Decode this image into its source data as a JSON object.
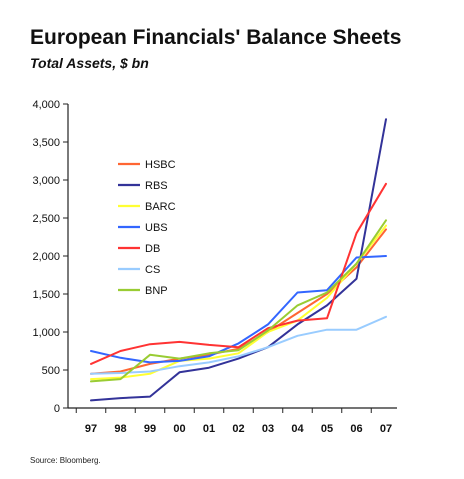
{
  "chart_data": {
    "type": "line",
    "title": "European Financials' Balance Sheets",
    "subtitle": "Total Assets, $ bn",
    "source": "Source: Bloomberg.",
    "xlabel": "",
    "ylabel": "",
    "categories": [
      "97",
      "98",
      "99",
      "00",
      "01",
      "02",
      "03",
      "04",
      "05",
      "06",
      "07"
    ],
    "ylim": [
      0,
      4000
    ],
    "yticks": [
      "0",
      "500",
      "1,000",
      "1,500",
      "2,000",
      "2,500",
      "3,000",
      "3,500",
      "4,000"
    ],
    "ytick_values": [
      0,
      500,
      1000,
      1500,
      2000,
      2500,
      3000,
      3500,
      4000
    ],
    "legend_position": "upper-left",
    "grid": false,
    "series": [
      {
        "name": "HSBC",
        "color": "#ff6633",
        "values": [
          450,
          480,
          580,
          650,
          700,
          780,
          1000,
          1250,
          1500,
          1850,
          2350
        ]
      },
      {
        "name": "RBS",
        "color": "#333399",
        "values": [
          100,
          130,
          150,
          470,
          530,
          650,
          800,
          1100,
          1350,
          1700,
          3800
        ]
      },
      {
        "name": "BARC",
        "color": "#ffff33",
        "values": [
          380,
          400,
          450,
          620,
          650,
          720,
          1000,
          1150,
          1450,
          1900,
          2400
        ]
      },
      {
        "name": "UBS",
        "color": "#3366ff",
        "values": [
          750,
          660,
          600,
          620,
          680,
          850,
          1100,
          1520,
          1550,
          1980,
          2000
        ]
      },
      {
        "name": "DB",
        "color": "#ff3333",
        "values": [
          580,
          750,
          840,
          870,
          830,
          800,
          1050,
          1150,
          1180,
          2300,
          2950
        ]
      },
      {
        "name": "CS",
        "color": "#99ccff",
        "values": [
          450,
          460,
          480,
          550,
          600,
          680,
          800,
          950,
          1030,
          1030,
          1200
        ]
      },
      {
        "name": "BNP",
        "color": "#99cc33",
        "values": [
          350,
          380,
          700,
          650,
          720,
          760,
          1020,
          1350,
          1520,
          1900,
          2470
        ]
      }
    ]
  }
}
